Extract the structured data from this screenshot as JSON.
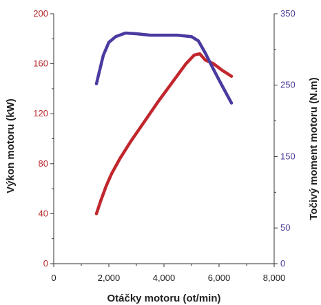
{
  "chart_data": {
    "type": "line",
    "xlabel": "Otáčky motoru (ot/min)",
    "ylabel_left": "Výkon motoru (kW)",
    "ylabel_right": "Točivý moment motoru (N.m)",
    "xlim": [
      0,
      8000
    ],
    "ylim_left": [
      0,
      200
    ],
    "ylim_right": [
      0,
      350
    ],
    "x_ticks": [
      "0",
      "2,000",
      "4,000",
      "6,000",
      "8,000"
    ],
    "y_left_ticks": [
      "0",
      "40",
      "80",
      "120",
      "160",
      "200"
    ],
    "y_right_ticks": [
      "0",
      "50",
      "150",
      "250",
      "350"
    ],
    "grid": false,
    "series": [
      {
        "axis": "left",
        "color": "#c1272d",
        "points": [
          [
            1550,
            40
          ],
          [
            1700,
            50
          ],
          [
            1900,
            62
          ],
          [
            2100,
            72
          ],
          [
            2400,
            84
          ],
          [
            2800,
            98
          ],
          [
            3300,
            114
          ],
          [
            3800,
            130
          ],
          [
            4300,
            145
          ],
          [
            4800,
            160
          ],
          [
            5100,
            167
          ],
          [
            5300,
            168
          ],
          [
            5500,
            163
          ],
          [
            5800,
            160
          ],
          [
            6100,
            155
          ],
          [
            6450,
            150
          ]
        ]
      },
      {
        "axis": "right",
        "color": "#4b3aa0",
        "points": [
          [
            1550,
            252
          ],
          [
            1650,
            268
          ],
          [
            1800,
            292
          ],
          [
            2000,
            310
          ],
          [
            2250,
            318
          ],
          [
            2600,
            323
          ],
          [
            3000,
            322
          ],
          [
            3500,
            320
          ],
          [
            4000,
            320
          ],
          [
            4500,
            320
          ],
          [
            5000,
            318
          ],
          [
            5250,
            312
          ],
          [
            5500,
            295
          ],
          [
            5800,
            272
          ],
          [
            6100,
            250
          ],
          [
            6450,
            225
          ]
        ]
      }
    ]
  }
}
